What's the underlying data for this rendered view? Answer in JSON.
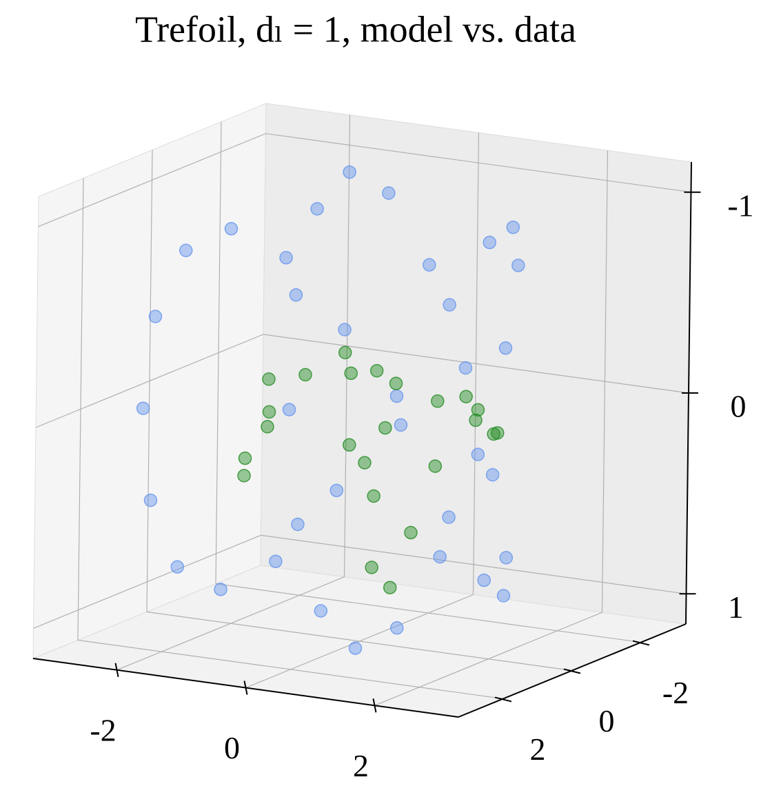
{
  "chart_data": {
    "type": "scatter3d",
    "title": "Trefoil, dₗ = 1, model vs. data",
    "xlim": [
      -3.3,
      3.3
    ],
    "ylim": [
      -3.3,
      3.3
    ],
    "zlim": [
      1.15,
      -1.15
    ],
    "xticks": [
      -2,
      0,
      2
    ],
    "yticks": [
      -2,
      0,
      2
    ],
    "zticks": [
      -1,
      0,
      1
    ],
    "grid": true,
    "series": [
      {
        "color": "#6495ed",
        "x": [
          0,
          0.858,
          1.628,
          2.232,
          2.613,
          2.736,
          2.598,
          2.226,
          1.669,
          1,
          0.301,
          -0.346,
          -0.866,
          -1.204,
          -1.327,
          -1.232,
          -0.944,
          -0.51,
          0,
          0.51,
          0.944,
          1.232,
          1.327,
          1.204,
          0.866,
          0.346,
          -0.301,
          -1,
          -1.669,
          -2.226,
          -2.598,
          -2.736,
          -2.613,
          -2.232,
          -1.628,
          -0.858
        ],
        "y": [
          -1,
          -0.894,
          -0.592,
          -0.134,
          0.419,
          0.99,
          1.5,
          1.874,
          2.054,
          2,
          1.706,
          1.19,
          0.5,
          -0.295,
          -1.114,
          -1.866,
          -2.472,
          -2.865,
          -3,
          -2.865,
          -2.472,
          -1.866,
          -1.114,
          -0.295,
          0.5,
          1.19,
          1.706,
          2,
          2.054,
          1.874,
          1.5,
          0.99,
          0.419,
          -0.134,
          -0.592,
          -0.894
        ],
        "z": [
          0,
          -0.5,
          -0.866,
          -1,
          -0.866,
          -0.5,
          0,
          0.5,
          0.866,
          1,
          0.866,
          0.5,
          0,
          -0.5,
          -0.866,
          -1,
          -0.866,
          -0.5,
          0,
          0.5,
          0.866,
          1,
          0.866,
          0.5,
          0,
          -0.5,
          -0.866,
          -1,
          -0.866,
          -0.5,
          0,
          0.5,
          0.866,
          1,
          0.866,
          0.5
        ]
      },
      {
        "color": "#228b22",
        "x": [
          -1.6,
          -1.7,
          -1.5,
          -1.2,
          -1.4,
          -1.1,
          -0.5,
          0.2,
          0.9,
          1.6,
          2.1,
          2.2,
          1.9,
          1.5,
          1.3,
          1.2,
          1.1,
          0.6,
          0.3,
          0.2,
          -0.1,
          -0.3,
          0.1,
          -0.7
        ],
        "y": [
          -0.3,
          0.2,
          0.6,
          0.5,
          0.1,
          -0.4,
          -0.6,
          -0.6,
          -0.5,
          -0.3,
          0,
          0.3,
          0.2,
          -0.2,
          0.3,
          0.8,
          1.2,
          0.8,
          0.2,
          -0.3,
          -0.6,
          -0.2,
          0.1,
          -0.8
        ],
        "z": [
          0.1,
          0.3,
          0.35,
          0.1,
          -0.1,
          -0.1,
          -0.12,
          -0.1,
          -0.05,
          0,
          0.02,
          0,
          -0.1,
          -0.12,
          0.2,
          0.5,
          0.75,
          0.7,
          0.4,
          0.1,
          -0.15,
          0.2,
          0.25,
          -0.2
        ]
      }
    ]
  }
}
